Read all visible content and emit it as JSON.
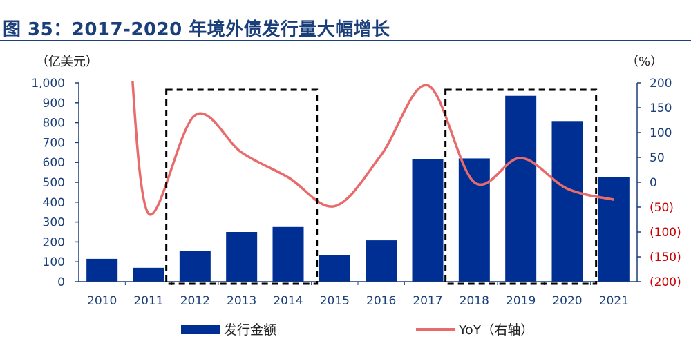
{
  "header": {
    "title": "图 35：2017-2020 年境外债发行量大幅增长"
  },
  "units": {
    "left": "（亿美元）",
    "right": "（%）"
  },
  "legend": {
    "bar_label": "发行金额",
    "line_label": "YoY（右轴）"
  },
  "colors": {
    "bar": "#002f94",
    "line": "#e86a6a",
    "axis_left": "#1a3f7a",
    "axis_right_positive": "#1a3f7a",
    "axis_right_negative": "#cc0000",
    "highlight_box": "#000000"
  },
  "chart_data": {
    "type": "bar",
    "categories": [
      "2010",
      "2011",
      "2012",
      "2013",
      "2014",
      "2015",
      "2016",
      "2017",
      "2018",
      "2019",
      "2020",
      "2021"
    ],
    "series": [
      {
        "name": "发行金额",
        "type": "bar",
        "axis": "left",
        "values": [
          115,
          70,
          155,
          250,
          275,
          135,
          208,
          615,
          620,
          935,
          808,
          525
        ]
      },
      {
        "name": "YoY（右轴）",
        "type": "line",
        "axis": "right",
        "smooth": true,
        "values": [
          null,
          -63,
          135,
          60,
          10,
          -48,
          55,
          195,
          0,
          49,
          -13,
          -35
        ]
      }
    ],
    "y_left": {
      "ylim": [
        0,
        1000
      ],
      "tick_labels": [
        "0",
        "100",
        "200",
        "300",
        "400",
        "500",
        "600",
        "700",
        "800",
        "900",
        "1,000"
      ],
      "tick_values": [
        0,
        100,
        200,
        300,
        400,
        500,
        600,
        700,
        800,
        900,
        1000
      ]
    },
    "y_right": {
      "ylim": [
        -200,
        200
      ],
      "tick_labels": [
        "(200)",
        "(150)",
        "(100)",
        "(50)",
        "0",
        "50",
        "100",
        "150",
        "200"
      ],
      "tick_values": [
        -200,
        -150,
        -100,
        -50,
        0,
        50,
        100,
        150,
        200
      ]
    },
    "highlight_ranges": [
      [
        "2012",
        "2014"
      ],
      [
        "2018",
        "2020"
      ]
    ],
    "grid": false,
    "legend_position": "bottom"
  }
}
